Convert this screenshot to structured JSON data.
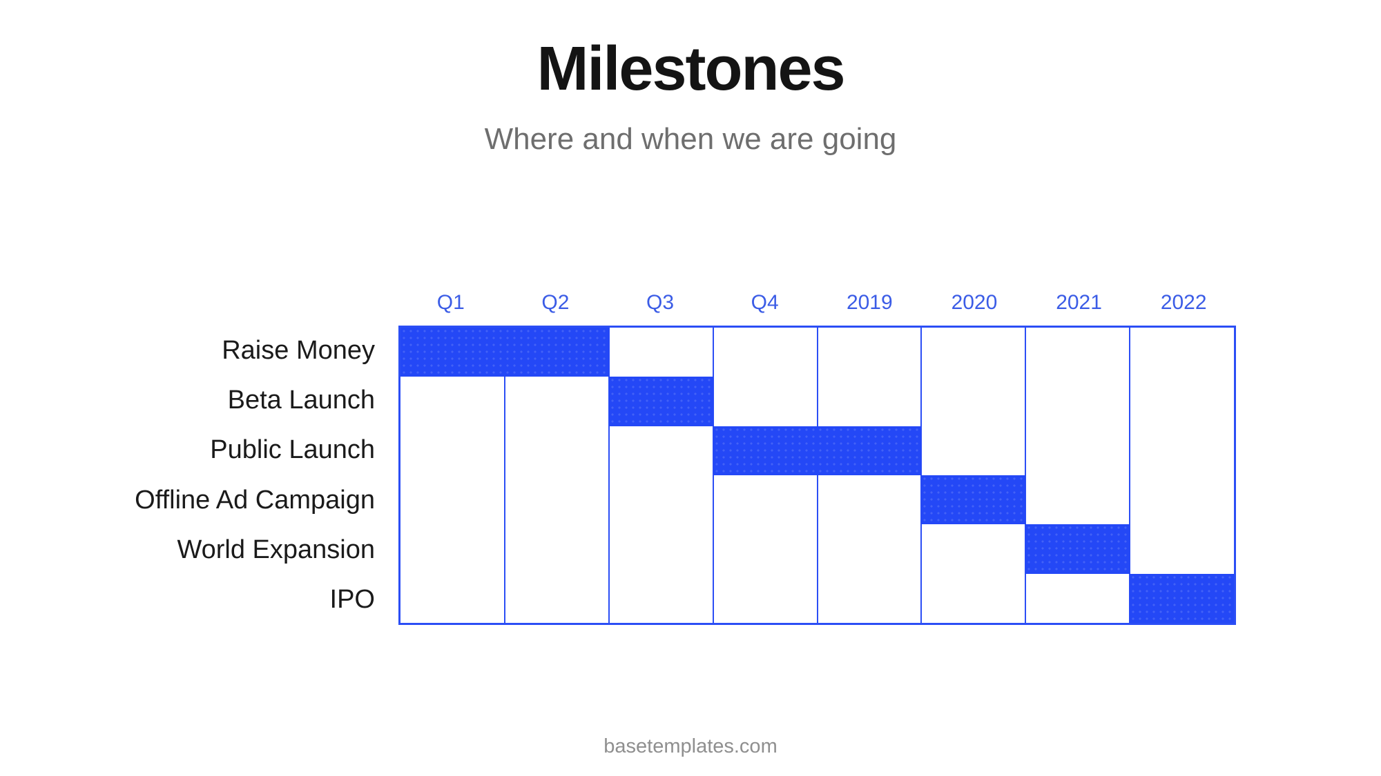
{
  "slide": {
    "title": "Milestones",
    "subtitle": "Where and when we are going",
    "footer": "basetemplates.com"
  },
  "colors": {
    "bar": "#2448f6",
    "grid_line": "#2b4ef5",
    "header_text": "#3b5ce6",
    "title_text": "#141414",
    "subtitle_text": "#6e6e6e",
    "footer_text": "#8f8f8f"
  },
  "chart_data": {
    "type": "gantt",
    "title": "Milestones",
    "subtitle": "Where and when we are going",
    "columns": [
      "Q1",
      "Q2",
      "Q3",
      "Q4",
      "2019",
      "2020",
      "2021",
      "2022"
    ],
    "rows": [
      {
        "label": "Raise Money",
        "start": 0,
        "span": 2
      },
      {
        "label": "Beta Launch",
        "start": 2,
        "span": 1
      },
      {
        "label": "Public Launch",
        "start": 3,
        "span": 2
      },
      {
        "label": "Offline Ad Campaign",
        "start": 5,
        "span": 1
      },
      {
        "label": "World Expansion",
        "start": 6,
        "span": 1
      },
      {
        "label": "IPO",
        "start": 7,
        "span": 1
      }
    ],
    "layout_hints": {
      "grid": "vertical column separators only, full height",
      "bar_fill": "solid blue with faint light dot texture",
      "row_count": 6,
      "column_count": 8,
      "labels_position": "left, right-aligned",
      "column_headers_position": "top, centered over columns, blue text"
    }
  }
}
